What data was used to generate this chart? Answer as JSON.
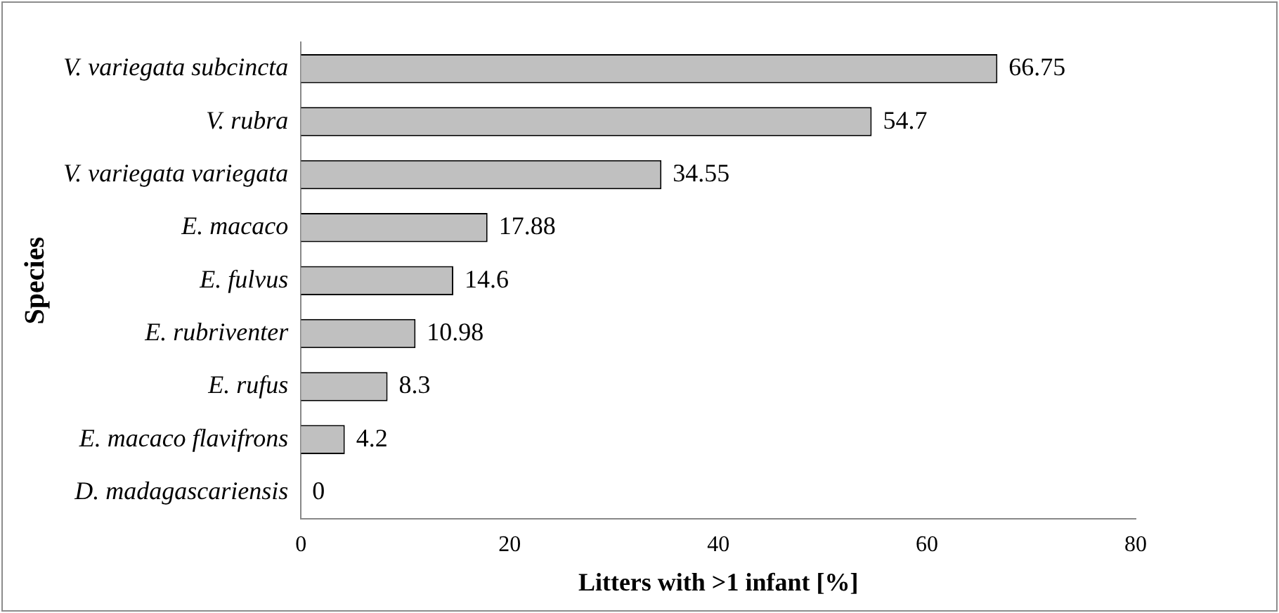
{
  "chart_data": {
    "type": "bar",
    "orientation": "horizontal",
    "xlabel": "Litters with >1 infant [%]",
    "ylabel": "Species",
    "categories": [
      "V. variegata subcincta",
      "V. rubra",
      "V. variegata variegata",
      "E. macaco",
      "E. fulvus",
      "E. rubriventer",
      "E. rufus",
      "E. macaco flavifrons",
      "D. madagascariensis"
    ],
    "values": [
      66.75,
      54.7,
      34.55,
      17.88,
      14.6,
      10.98,
      8.3,
      4.2,
      0
    ],
    "value_labels": [
      "66.75",
      "54.7",
      "34.55",
      "17.88",
      "14.6",
      "10.98",
      "8.3",
      "4.2",
      "0"
    ],
    "color": "#c0c0c0",
    "xlim": [
      0,
      80
    ],
    "xticks": [
      0,
      20,
      40,
      60,
      80
    ],
    "grid": false,
    "legend": false
  }
}
